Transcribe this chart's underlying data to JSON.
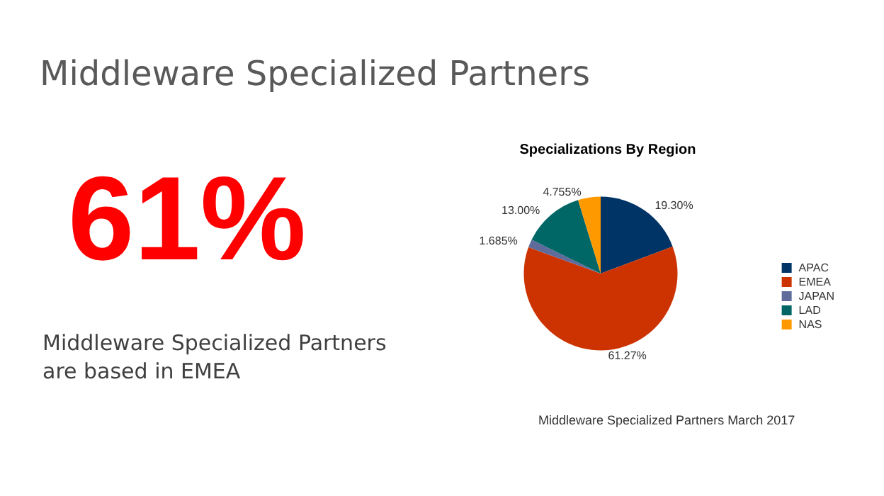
{
  "chart_data": {
    "type": "pie",
    "title": "Specializations By Region",
    "categories": [
      "APAC",
      "EMEA",
      "JAPAN",
      "LAD",
      "NAS"
    ],
    "values": [
      19.3,
      61.27,
      1.685,
      13,
      4.755
    ],
    "value_labels": [
      "19.30%",
      "61.27%",
      "1.685%",
      "13.00%",
      "4.755%"
    ],
    "colors": [
      "#003366",
      "#cc3300",
      "#5f6b9a",
      "#006666",
      "#ff9900"
    ],
    "legend": "right",
    "annotations": [
      "Middleware Specialized Partners",
      "61%",
      "Middleware Specialized Partners are based in EMEA",
      "Middleware Specialized Partners March 2017"
    ]
  }
}
